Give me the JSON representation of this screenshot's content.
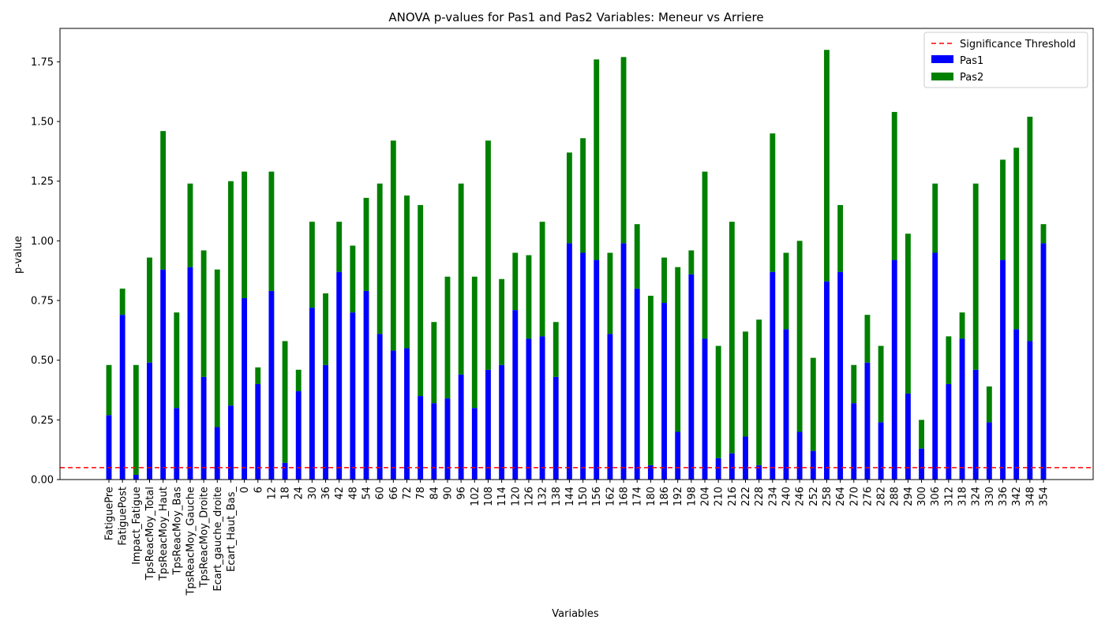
{
  "chart_data": {
    "type": "bar",
    "stacked": true,
    "title": "ANOVA p-values for Pas1 and Pas2 Variables: Meneur vs Arriere",
    "xlabel": "Variables",
    "ylabel": "p-value",
    "ylim": [
      0,
      1.89
    ],
    "yticks": [
      "0.00",
      "0.25",
      "0.50",
      "0.75",
      "1.00",
      "1.25",
      "1.50",
      "1.75"
    ],
    "grid": false,
    "legend_position": "top-right",
    "threshold": {
      "value": 0.05,
      "label": "Significance Threshold",
      "color": "#ff0000"
    },
    "categories": [
      "FatiguePre",
      "FatiguePost",
      "Impact_Fatigue",
      "TpsReacMoy_Total",
      "TpsReacMoy_Haut",
      "TpsReacMoy_Bas",
      "TpsReacMoy_Gauche",
      "TpsReacMoy_Droite",
      "Ecart_gauche_droite",
      "Ecart_Haut_Bas_",
      "0",
      "6",
      "12",
      "18",
      "24",
      "30",
      "36",
      "42",
      "48",
      "54",
      "60",
      "66",
      "72",
      "78",
      "84",
      "90",
      "96",
      "102",
      "108",
      "114",
      "120",
      "126",
      "132",
      "138",
      "144",
      "150",
      "156",
      "162",
      "168",
      "174",
      "180",
      "186",
      "192",
      "198",
      "204",
      "210",
      "216",
      "222",
      "228",
      "234",
      "240",
      "246",
      "252",
      "258",
      "264",
      "270",
      "276",
      "282",
      "288",
      "294",
      "300",
      "306",
      "312",
      "318",
      "324",
      "330",
      "336",
      "342",
      "348",
      "354"
    ],
    "series": [
      {
        "name": "Pas1",
        "color": "#0000ff",
        "values": [
          0.27,
          0.69,
          0.02,
          0.49,
          0.88,
          0.3,
          0.89,
          0.43,
          0.22,
          0.31,
          0.76,
          0.4,
          0.79,
          0.07,
          0.37,
          0.72,
          0.48,
          0.87,
          0.7,
          0.79,
          0.61,
          0.54,
          0.55,
          0.35,
          0.32,
          0.34,
          0.44,
          0.3,
          0.46,
          0.48,
          0.71,
          0.59,
          0.6,
          0.43,
          0.99,
          0.95,
          0.92,
          0.61,
          0.99,
          0.8,
          0.06,
          0.74,
          0.2,
          0.86,
          0.59,
          0.09,
          0.11,
          0.18,
          0.06,
          0.87,
          0.63,
          0.2,
          0.12,
          0.83,
          0.87,
          0.32,
          0.49,
          0.24,
          0.92,
          0.36,
          0.13,
          0.95,
          0.4,
          0.59,
          0.46,
          0.24,
          0.92,
          0.63,
          0.58,
          0.99
        ]
      },
      {
        "name": "Pas2",
        "color": "#008000",
        "values": [
          0.21,
          0.11,
          0.46,
          0.44,
          0.58,
          0.4,
          0.35,
          0.53,
          0.66,
          0.94,
          0.53,
          0.07,
          0.5,
          0.51,
          0.09,
          0.36,
          0.3,
          0.21,
          0.28,
          0.39,
          0.63,
          0.88,
          0.64,
          0.8,
          0.34,
          0.51,
          0.8,
          0.55,
          0.96,
          0.36,
          0.24,
          0.35,
          0.48,
          0.23,
          0.38,
          0.48,
          0.84,
          0.34,
          0.78,
          0.27,
          0.71,
          0.19,
          0.69,
          0.1,
          0.7,
          0.47,
          0.97,
          0.44,
          0.61,
          0.58,
          0.32,
          0.8,
          0.39,
          0.97,
          0.28,
          0.16,
          0.2,
          0.32,
          0.62,
          0.67,
          0.12,
          0.29,
          0.2,
          0.11,
          0.78,
          0.15,
          0.42,
          0.76,
          0.94,
          0.08
        ]
      }
    ]
  }
}
